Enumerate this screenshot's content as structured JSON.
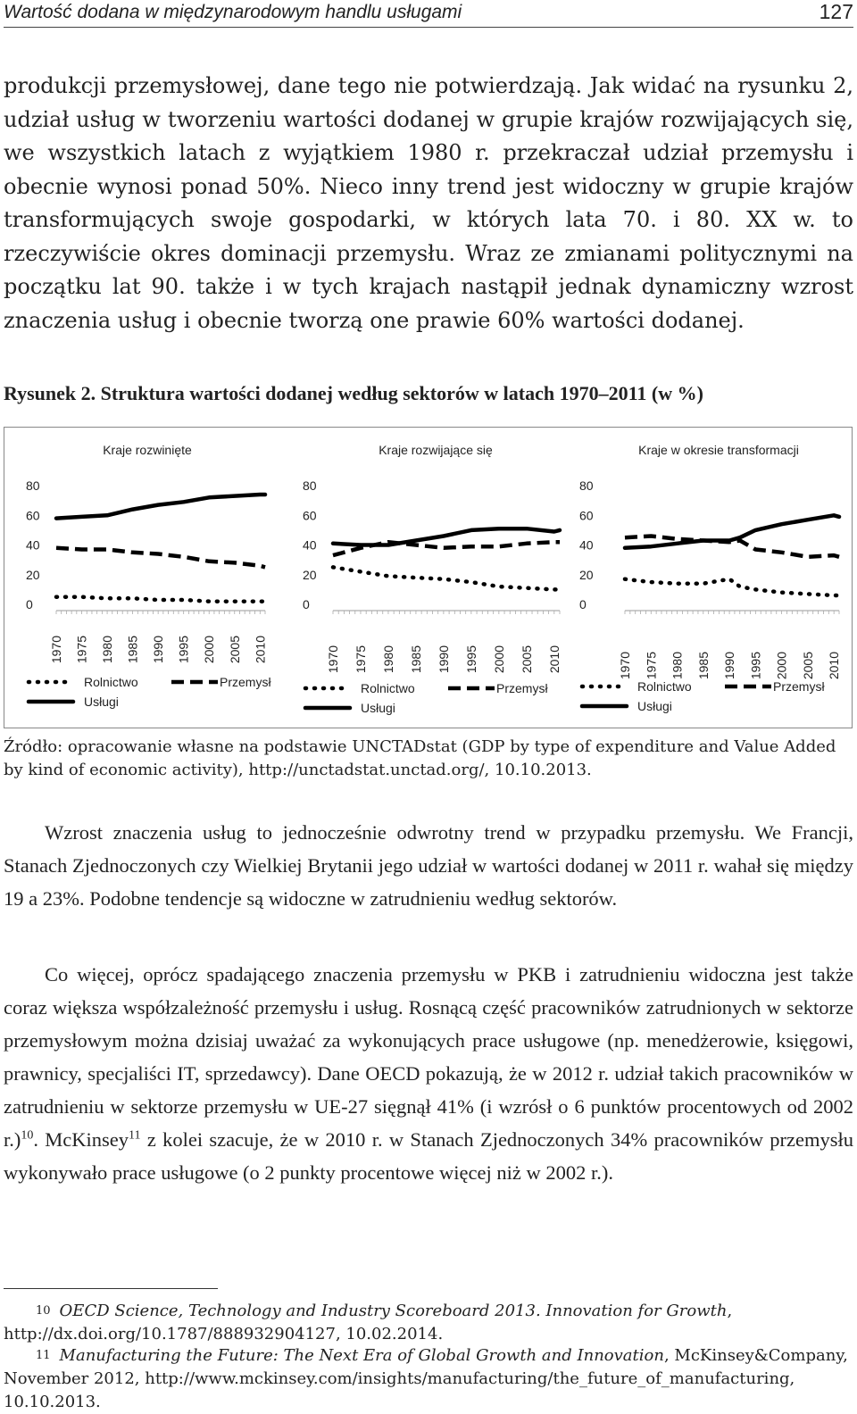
{
  "header": {
    "title": "Wartość dodana w międzynarodowym handlu usługami",
    "page_number": "127"
  },
  "paragraph1": "produkcji przemysłowej, dane tego nie potwierdzają. Jak widać na rysunku 2, udział usług w tworzeniu wartości dodanej w grupie krajów rozwijających się, we wszystkich latach z wyjątkiem 1980 r. przekraczał udział przemysłu i obecnie wynosi ponad 50%. Nieco inny trend jest widoczny w grupie krajów transformujących swoje gospodarki, w których lata 70. i 80. XX w. to rzeczywiście okres dominacji przemysłu. Wraz ze zmianami politycznymi na początku lat 90. także i w tych krajach nastąpił jednak dynamiczny wzrost znaczenia usług i obecnie tworzą one prawie 60% wartości dodanej.",
  "figure": {
    "label": "Rysunek 2.",
    "title": "Struktura wartości dodanej według sektorów w latach 1970–2011 (w %)"
  },
  "chart_data": [
    {
      "type": "line",
      "title": "Kraje rozwinięte",
      "yticks": [
        "0",
        "20",
        "40",
        "60",
        "80"
      ],
      "ylim": [
        0,
        80
      ],
      "xticks": [
        "1970",
        "1975",
        "1980",
        "1985",
        "1990",
        "1995",
        "2000",
        "2005",
        "2010"
      ],
      "x": [
        1970,
        1975,
        1980,
        1985,
        1990,
        1995,
        2000,
        2005,
        2010,
        2011
      ],
      "series": [
        {
          "name": "Rolnictwo",
          "style": "dotted",
          "values": [
            5,
            5,
            4,
            4,
            3,
            3,
            2,
            2,
            2,
            2
          ]
        },
        {
          "name": "Przemysł",
          "style": "dashed",
          "values": [
            38,
            37,
            37,
            35,
            34,
            32,
            29,
            28,
            26,
            25
          ]
        },
        {
          "name": "Usługi",
          "style": "solid",
          "values": [
            58,
            59,
            60,
            64,
            67,
            69,
            72,
            73,
            74,
            74
          ]
        }
      ],
      "legend": [
        "Rolnictwo",
        "Przemysł",
        "Usługi"
      ]
    },
    {
      "type": "line",
      "title": "Kraje rozwijające się",
      "yticks": [
        "0",
        "20",
        "40",
        "60",
        "80"
      ],
      "ylim": [
        0,
        80
      ],
      "xticks": [
        "1970",
        "1975",
        "1980",
        "1985",
        "1990",
        "1995",
        "2000",
        "2005",
        "2010"
      ],
      "x": [
        1970,
        1975,
        1980,
        1985,
        1990,
        1995,
        2000,
        2005,
        2010,
        2011
      ],
      "series": [
        {
          "name": "Rolnictwo",
          "style": "dotted",
          "values": [
            25,
            22,
            19,
            18,
            17,
            15,
            12,
            11,
            10,
            10
          ]
        },
        {
          "name": "Przemysł",
          "style": "dashed",
          "values": [
            33,
            38,
            42,
            40,
            38,
            39,
            39,
            41,
            42,
            42
          ]
        },
        {
          "name": "Usługi",
          "style": "solid",
          "values": [
            41,
            40,
            40,
            43,
            46,
            50,
            51,
            51,
            49,
            50
          ]
        }
      ],
      "legend": [
        "Rolnictwo",
        "Przemysł",
        "Usługi"
      ]
    },
    {
      "type": "line",
      "title": "Kraje w okresie transformacji",
      "yticks": [
        "0",
        "20",
        "40",
        "60",
        "80"
      ],
      "ylim": [
        0,
        80
      ],
      "xticks": [
        "1970",
        "1975",
        "1980",
        "1985",
        "1990",
        "1995",
        "2000",
        "2005",
        "2010"
      ],
      "x": [
        1970,
        1975,
        1980,
        1985,
        1990,
        1992,
        1995,
        2000,
        2005,
        2010,
        2011
      ],
      "series": [
        {
          "name": "Rolnictwo",
          "style": "dotted",
          "values": [
            17,
            15,
            14,
            14,
            17,
            12,
            10,
            8,
            7,
            6,
            6
          ]
        },
        {
          "name": "Przemysł",
          "style": "dashed",
          "values": [
            45,
            46,
            44,
            43,
            42,
            43,
            37,
            35,
            32,
            33,
            32
          ]
        },
        {
          "name": "Usługi",
          "style": "solid",
          "values": [
            38,
            39,
            41,
            43,
            43,
            45,
            50,
            54,
            57,
            60,
            59
          ]
        }
      ],
      "legend": [
        "Rolnictwo",
        "Przemysł",
        "Usługi"
      ]
    }
  ],
  "source": "Źródło: opracowanie własne na podstawie UNCTADstat (GDP by type of expenditure and Value Added by kind of economic activity), http://unctadstat.unctad.org/, 10.10.2013.",
  "paragraph2": "Wzrost znaczenia usług to jednocześnie odwrotny trend w przypadku przemysłu. We Francji, Stanach Zjednoczonych czy Wielkiej Brytanii jego udział w wartości dodanej w 2011 r. wahał się między 19 a 23%. Podobne tendencje są widoczne w zatrudnieniu według sektorów.",
  "paragraph3": {
    "text_a": "Co więcej, oprócz spadającego znaczenia przemysłu w PKB i zatrudnieniu widoczna jest także coraz większa współzależność przemysłu i usług. Rosnącą część pracowników zatrudnionych w sektorze przemysłowym można dzisiaj uważać za wykonujących prace usługowe (np. menedżerowie, księgowi, prawnicy, specjaliści IT, sprzedawcy). Dane OECD pokazują, że w 2012 r. udział takich pracowników w zatrudnieniu w sektorze przemysłu w UE-27 sięgnął 41% (i wzrósł o 6 punktów procentowych od 2002 r.)",
    "ref_a": "10",
    "text_b": ". McKinsey",
    "ref_b": "11",
    "text_c": " z kolei szacuje, że w 2010 r. w Stanach Zjednoczonych 34% pracowników przemysłu wykonywało prace usługowe (o 2 punkty procentowe więcej niż w 2002 r.)."
  },
  "footnotes": [
    {
      "num": "10",
      "italic": "OECD Science, Technology and Industry Scoreboard 2013. Innovation for Growth",
      "rest": ", http://dx.doi.org/10.1787/888932904127, 10.02.2014."
    },
    {
      "num": "11",
      "italic": "Manufacturing the Future: The Next Era of Global Growth and Innovation",
      "rest": ", McKinsey&Company, November 2012, http://www.mckinsey.com/insights/manufacturing/the_future_of_manufacturing, 10.10.2013."
    }
  ]
}
